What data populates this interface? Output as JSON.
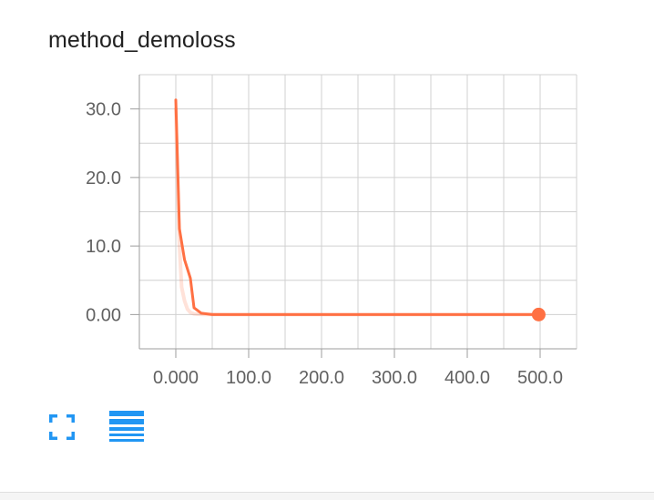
{
  "panel": {
    "title": "method_demoloss"
  },
  "toolbar": {
    "expand_icon": "fullscreen-icon",
    "data_icon": "data-table-icon",
    "icon_color": "#2196f3"
  },
  "chart_data": {
    "type": "line",
    "title": "method_demoloss",
    "xlabel": "",
    "ylabel": "",
    "xlim": [
      -50,
      550
    ],
    "ylim": [
      -5,
      35
    ],
    "x_ticks": [
      {
        "value": 0,
        "label": "0.000"
      },
      {
        "value": 100,
        "label": "100.0"
      },
      {
        "value": 200,
        "label": "200.0"
      },
      {
        "value": 300,
        "label": "300.0"
      },
      {
        "value": 400,
        "label": "400.0"
      },
      {
        "value": 500,
        "label": "500.0"
      }
    ],
    "y_ticks": [
      {
        "value": 0,
        "label": "0.00"
      },
      {
        "value": 10,
        "label": "10.0"
      },
      {
        "value": 20,
        "label": "20.0"
      },
      {
        "value": 30,
        "label": "30.0"
      }
    ],
    "grid": true,
    "series": [
      {
        "role": "raw",
        "color": "#ff7043",
        "opacity": 0.2,
        "x": [
          0,
          2,
          5,
          8,
          12,
          16,
          20,
          25,
          30,
          40,
          60,
          100,
          200,
          300,
          400,
          498
        ],
        "y": [
          30.0,
          20.0,
          10.0,
          4.0,
          2.0,
          0.8,
          0.3,
          0.1,
          0.05,
          0.02,
          0.01,
          0.0,
          0.0,
          0.0,
          0.0,
          0.0
        ]
      },
      {
        "role": "smoothed",
        "color": "#ff7043",
        "opacity": 1.0,
        "x": [
          0,
          5,
          12,
          20,
          25,
          35,
          50,
          100,
          200,
          300,
          400,
          498
        ],
        "y": [
          31.3,
          12.5,
          8.0,
          5.3,
          1.0,
          0.2,
          0.0,
          0.0,
          0.0,
          0.0,
          0.0,
          0.0
        ]
      }
    ],
    "last_point": {
      "x": 498,
      "y": 0.0
    }
  }
}
